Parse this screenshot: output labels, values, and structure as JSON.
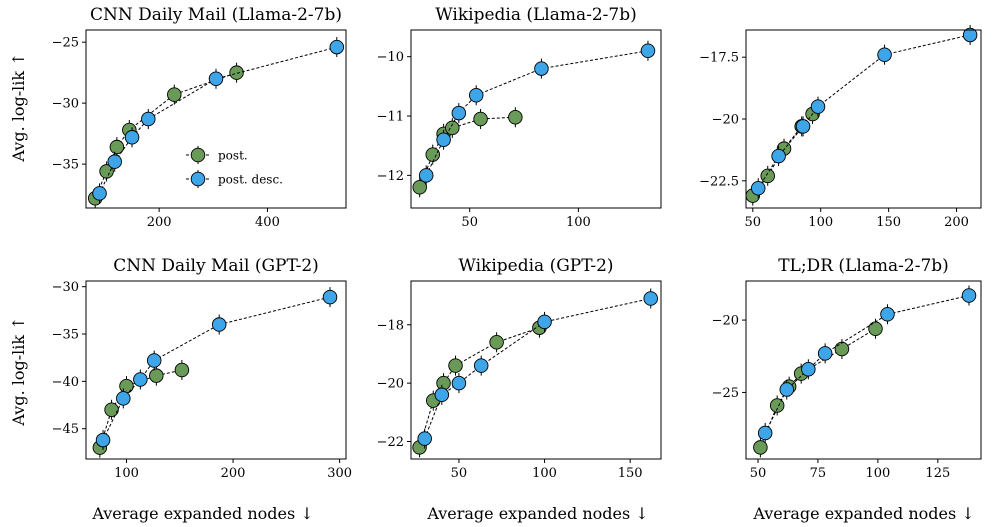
{
  "colors": {
    "post": "#6a9a58",
    "post_desc": "#3da5e8"
  },
  "legend": {
    "post": "post.",
    "post_desc": "post. desc."
  },
  "figure": {
    "xlabel": "Average expanded nodes ↓",
    "ylabel": "Avg. log-lik ↑"
  },
  "chart_data": [
    {
      "type": "line",
      "title": "CNN Daily Mail (Llama-2-7b)",
      "xlim": [
        65,
        545
      ],
      "ylim": [
        -38.6,
        -24
      ],
      "xticks": [
        200,
        400
      ],
      "yticks": [
        -35,
        -30,
        -25
      ],
      "series": [
        {
          "name": "post.",
          "x": [
            82,
            103,
            122,
            145,
            228,
            343
          ],
          "y": [
            -37.8,
            -35.6,
            -33.6,
            -32.2,
            -29.3,
            -27.5
          ]
        },
        {
          "name": "post. desc.",
          "x": [
            90,
            118,
            150,
            180,
            305,
            528
          ],
          "y": [
            -37.4,
            -34.8,
            -32.8,
            -31.3,
            -28.0,
            -25.4
          ]
        }
      ]
    },
    {
      "type": "line",
      "title": "Wikipedia (Llama-2-7b)",
      "xlim": [
        23,
        138
      ],
      "ylim": [
        -12.55,
        -9.55
      ],
      "xticks": [
        50,
        100
      ],
      "yticks": [
        -12,
        -11,
        -10
      ],
      "series": [
        {
          "name": "post.",
          "x": [
            27,
            33,
            38,
            42,
            55,
            71
          ],
          "y": [
            -12.2,
            -11.65,
            -11.3,
            -11.2,
            -11.05,
            -11.02
          ]
        },
        {
          "name": "post. desc.",
          "x": [
            30,
            38,
            45,
            53,
            83,
            132
          ],
          "y": [
            -12.0,
            -11.4,
            -10.95,
            -10.65,
            -10.2,
            -9.9
          ]
        }
      ]
    },
    {
      "type": "line",
      "title": "",
      "xlim": [
        45,
        218
      ],
      "ylim": [
        -23.6,
        -16.4
      ],
      "xticks": [
        50,
        100,
        150,
        200
      ],
      "yticks": [
        -22.5,
        -20.0,
        -17.5
      ],
      "series": [
        {
          "name": "post.",
          "x": [
            50,
            61,
            73,
            86,
            94
          ],
          "y": [
            -23.1,
            -22.3,
            -21.2,
            -20.3,
            -19.8
          ]
        },
        {
          "name": "post. desc.",
          "x": [
            54,
            69,
            87,
            98,
            147,
            210
          ],
          "y": [
            -22.8,
            -21.5,
            -20.3,
            -19.5,
            -17.4,
            -16.6
          ]
        }
      ]
    },
    {
      "type": "line",
      "title": "CNN Daily Mail (GPT-2)",
      "xlim": [
        62,
        306
      ],
      "ylim": [
        -48.2,
        -29.4
      ],
      "xticks": [
        100,
        200,
        300
      ],
      "yticks": [
        -45,
        -40,
        -35,
        -30
      ],
      "series": [
        {
          "name": "post.",
          "x": [
            75,
            86,
            100,
            128,
            152
          ],
          "y": [
            -47.0,
            -43.0,
            -40.5,
            -39.4,
            -38.8
          ]
        },
        {
          "name": "post. desc.",
          "x": [
            78,
            97,
            113,
            126,
            187,
            291
          ],
          "y": [
            -46.2,
            -41.8,
            -39.8,
            -37.8,
            -34.0,
            -31.1
          ]
        }
      ]
    },
    {
      "type": "line",
      "title": "Wikipedia (GPT-2)",
      "xlim": [
        22,
        168
      ],
      "ylim": [
        -22.6,
        -16.5
      ],
      "xticks": [
        50,
        100,
        150
      ],
      "yticks": [
        -22,
        -20,
        -18
      ],
      "series": [
        {
          "name": "post.",
          "x": [
            27,
            35,
            41,
            48,
            72,
            97
          ],
          "y": [
            -22.2,
            -20.6,
            -20.0,
            -19.4,
            -18.6,
            -18.1
          ]
        },
        {
          "name": "post. desc.",
          "x": [
            30,
            40,
            50,
            63,
            100,
            162
          ],
          "y": [
            -21.9,
            -20.4,
            -20.0,
            -19.4,
            -17.9,
            -17.1
          ]
        }
      ]
    },
    {
      "type": "line",
      "title": "TL;DR (Llama-2-7b)",
      "xlim": [
        45,
        143
      ],
      "ylim": [
        -29.6,
        -17.3
      ],
      "xticks": [
        50,
        75,
        100,
        125
      ],
      "yticks": [
        -25,
        -20
      ],
      "series": [
        {
          "name": "post.",
          "x": [
            51,
            58,
            63,
            68,
            85,
            99
          ],
          "y": [
            -28.8,
            -25.9,
            -24.6,
            -23.7,
            -22.0,
            -20.6
          ]
        },
        {
          "name": "post. desc.",
          "x": [
            53,
            62,
            71,
            78,
            104,
            138
          ],
          "y": [
            -27.8,
            -24.8,
            -23.4,
            -22.3,
            -19.6,
            -18.3
          ]
        }
      ]
    }
  ]
}
